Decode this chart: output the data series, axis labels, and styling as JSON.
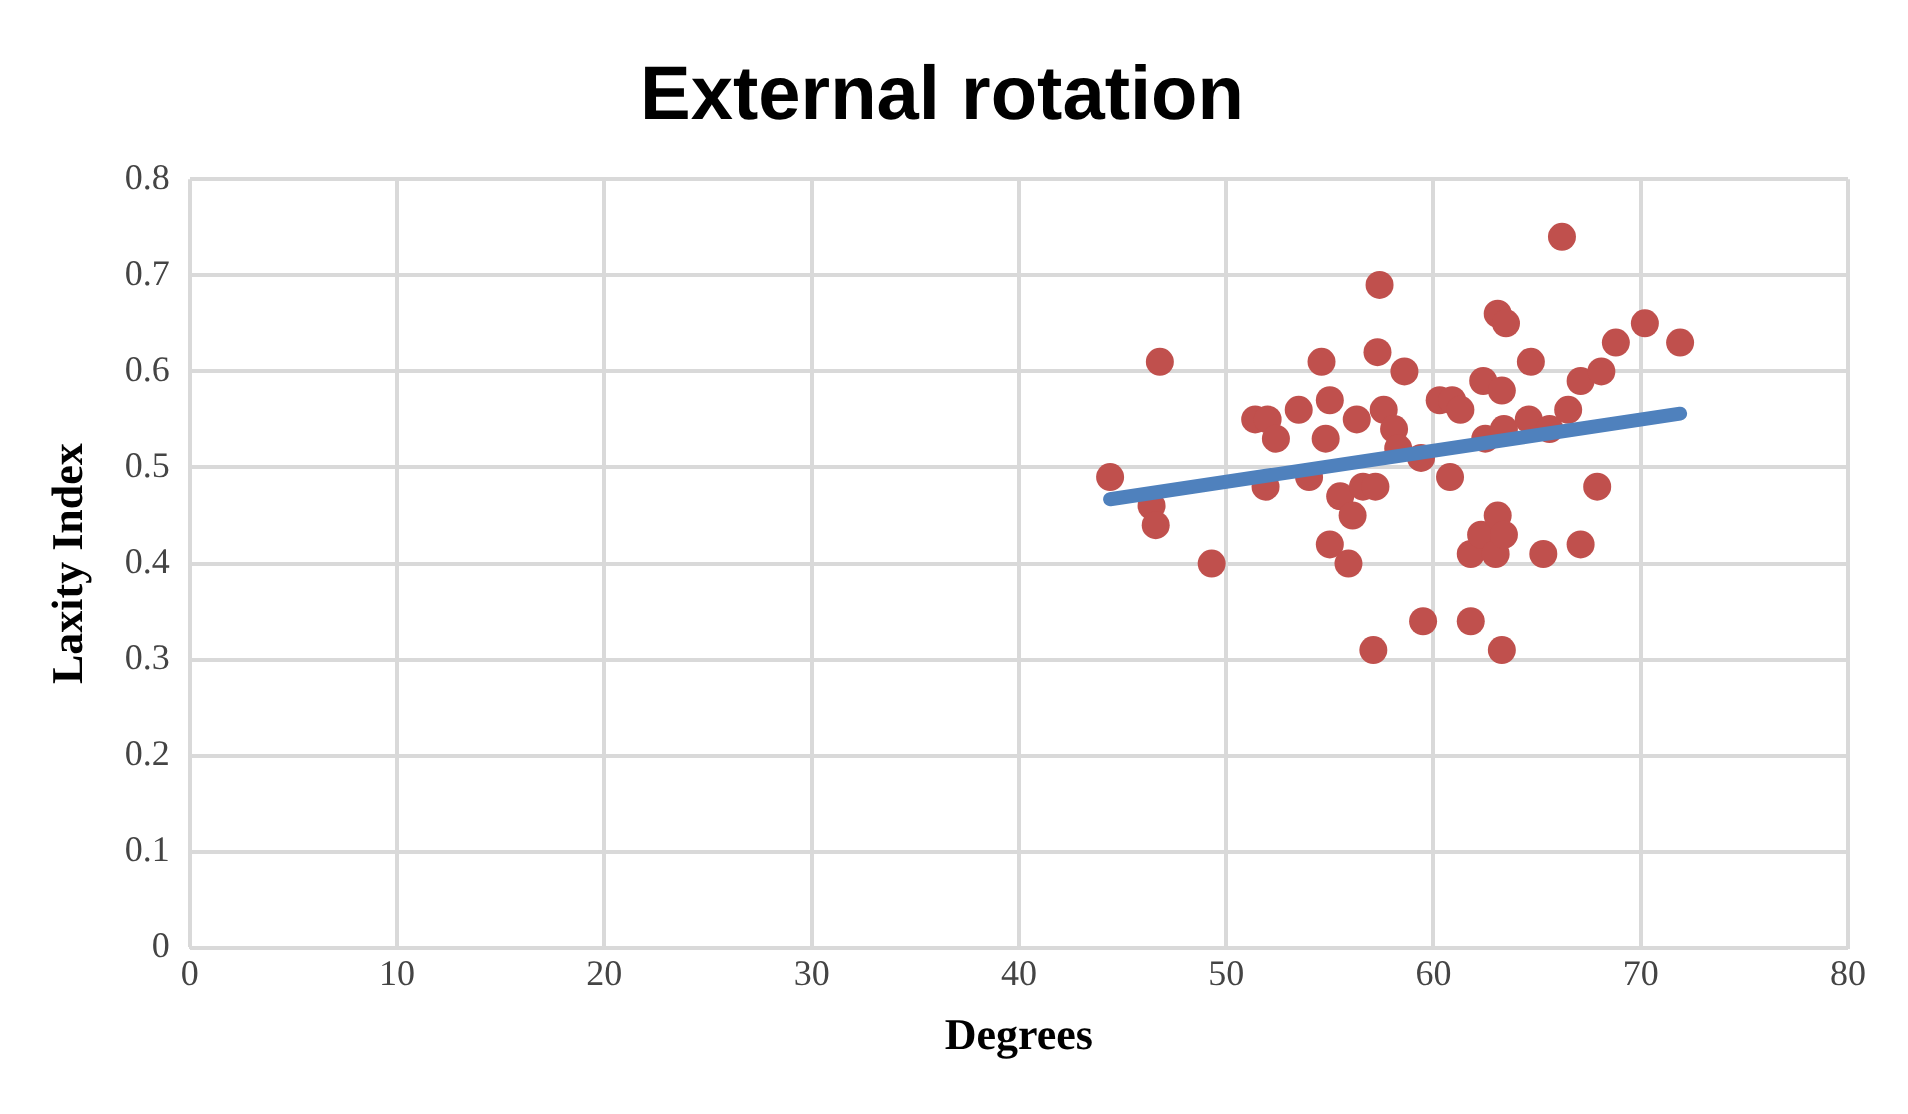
{
  "chart_data": {
    "type": "scatter",
    "title": "External rotation",
    "xlabel": "Degrees",
    "ylabel": "Laxity Index",
    "xlim": [
      0,
      80
    ],
    "xticks": [
      0,
      10,
      20,
      30,
      40,
      50,
      60,
      70,
      80
    ],
    "ylim": [
      0,
      0.8
    ],
    "yticks": [
      0,
      0.1,
      0.2,
      0.3,
      0.4,
      0.5,
      0.6,
      0.7,
      0.8
    ],
    "grid": true,
    "legend": false,
    "marker": "circle",
    "series": [
      {
        "color": "#c0504d",
        "x": [
          44.4,
          46.4,
          46.6,
          46.8,
          49.3,
          51.4,
          52,
          51.9,
          52.4,
          53.5,
          54,
          54.6,
          54.8,
          55,
          55,
          55.5,
          55.9,
          56.1,
          56.3,
          56.6,
          57.1,
          57.4,
          57.3,
          57.2,
          57.6,
          58.1,
          58.3,
          58.6,
          59.4,
          59.5,
          60.3,
          60.9,
          60.8,
          61.3,
          61.8,
          61.8,
          62.3,
          62.4,
          62.5,
          63,
          63.1,
          63.1,
          63.3,
          63.3,
          63.4,
          63.4,
          63.5,
          64.6,
          64.7,
          65.3,
          65.6,
          66.2,
          66.5,
          67.1,
          67.1,
          67.9,
          68.1,
          68.8,
          70.2,
          71.9
        ],
        "values": [
          0.49,
          0.46,
          0.44,
          0.61,
          0.4,
          0.55,
          0.55,
          0.48,
          0.53,
          0.56,
          0.49,
          0.61,
          0.53,
          0.57,
          0.42,
          0.47,
          0.4,
          0.45,
          0.55,
          0.48,
          0.31,
          0.69,
          0.62,
          0.48,
          0.56,
          0.54,
          0.52,
          0.6,
          0.51,
          0.34,
          0.57,
          0.57,
          0.49,
          0.56,
          0.41,
          0.34,
          0.43,
          0.59,
          0.53,
          0.41,
          0.45,
          0.66,
          0.58,
          0.31,
          0.54,
          0.43,
          0.65,
          0.55,
          0.61,
          0.41,
          0.54,
          0.74,
          0.56,
          0.59,
          0.42,
          0.48,
          0.6,
          0.63,
          0.65,
          0.63
        ]
      },
      {
        "type": "line",
        "color": "#4f81bd",
        "marker": "none",
        "line_style": "solid",
        "x": [
          44.4,
          71.9
        ],
        "values": [
          0.467,
          0.556
        ]
      }
    ]
  }
}
